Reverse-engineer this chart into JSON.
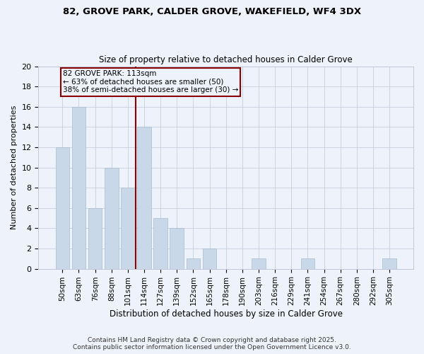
{
  "title1": "82, GROVE PARK, CALDER GROVE, WAKEFIELD, WF4 3DX",
  "title2": "Size of property relative to detached houses in Calder Grove",
  "xlabel": "Distribution of detached houses by size in Calder Grove",
  "ylabel": "Number of detached properties",
  "categories": [
    "50sqm",
    "63sqm",
    "76sqm",
    "88sqm",
    "101sqm",
    "114sqm",
    "127sqm",
    "139sqm",
    "152sqm",
    "165sqm",
    "178sqm",
    "190sqm",
    "203sqm",
    "216sqm",
    "229sqm",
    "241sqm",
    "254sqm",
    "267sqm",
    "280sqm",
    "292sqm",
    "305sqm"
  ],
  "values": [
    12,
    16,
    6,
    10,
    8,
    14,
    5,
    4,
    1,
    2,
    0,
    0,
    1,
    0,
    0,
    1,
    0,
    0,
    0,
    0,
    1
  ],
  "bar_color": "#c8d8e8",
  "bar_edge_color": "#a8bcd0",
  "vline_x": 4.5,
  "vline_color": "#8b0000",
  "annotation_title": "82 GROVE PARK: 113sqm",
  "annotation_line1": "← 63% of detached houses are smaller (50)",
  "annotation_line2": "38% of semi-detached houses are larger (30) →",
  "annotation_box_color": "#8b0000",
  "footer1": "Contains HM Land Registry data © Crown copyright and database right 2025.",
  "footer2": "Contains public sector information licensed under the Open Government Licence v3.0.",
  "ylim": [
    0,
    20
  ],
  "yticks": [
    0,
    2,
    4,
    6,
    8,
    10,
    12,
    14,
    16,
    18,
    20
  ],
  "background_color": "#eef2fb",
  "grid_color": "#c0c8d8",
  "title1_fontsize": 9.5,
  "title2_fontsize": 8.5,
  "xlabel_fontsize": 8.5,
  "ylabel_fontsize": 8.0,
  "tick_fontsize": 7.5,
  "footer_fontsize": 6.5,
  "annot_fontsize": 7.5
}
